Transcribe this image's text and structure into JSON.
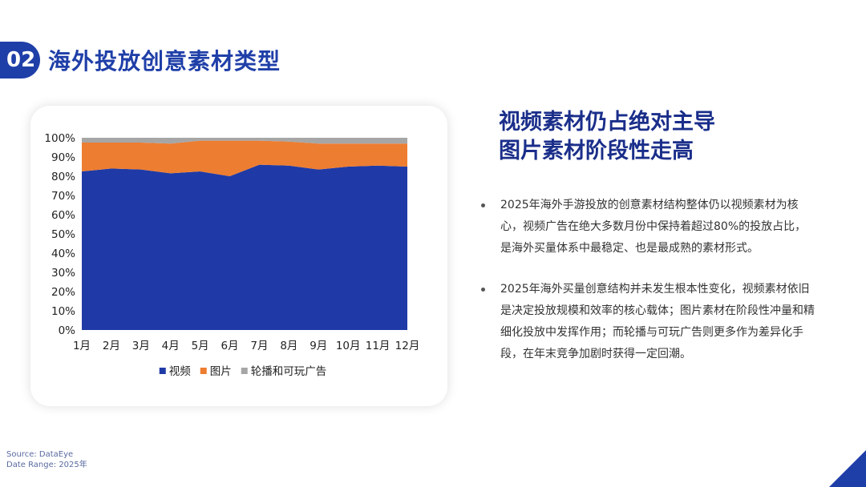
{
  "header": {
    "section_number": "02",
    "title": "海外投放创意素材类型"
  },
  "headline": {
    "line1": "视频素材仍占绝对主导",
    "line2": "图片素材阶段性走高"
  },
  "bullets": [
    "2025年海外手游投放的创意素材结构整体仍以视频素材为核心，视频广告在绝大多数月份中保持着超过80%的投放占比，是海外买量体系中最稳定、也是最成熟的素材形式。",
    "2025年海外买量创意结构并未发生根本性变化，视频素材依旧是决定投放规模和效率的核心载体；图片素材在阶段性冲量和精细化投放中发挥作用；而轮播与可玩广告则更多作为差异化手段，在年末竞争加剧时获得一定回潮。"
  ],
  "footer": {
    "source": "Source: DataEye",
    "date_range": "Date Range: 2025年"
  },
  "colors": {
    "video": "#1f3aa6",
    "image": "#ed7d31",
    "carousel": "#a6a6a6",
    "accent": "#1f3fa8"
  },
  "chart_data": {
    "type": "area",
    "stacked": true,
    "categories": [
      "1月",
      "2月",
      "3月",
      "4月",
      "5月",
      "6月",
      "7月",
      "8月",
      "9月",
      "10月",
      "11月",
      "12月"
    ],
    "series": [
      {
        "name": "视频",
        "values": [
          82.5,
          84.0,
          83.5,
          81.5,
          82.5,
          80.0,
          86.0,
          85.5,
          83.5,
          85.0,
          85.5,
          85.0
        ]
      },
      {
        "name": "图片",
        "values": [
          15.0,
          13.5,
          14.0,
          15.5,
          16.0,
          18.5,
          12.5,
          12.5,
          13.5,
          12.0,
          11.5,
          12.0
        ]
      },
      {
        "name": "轮播和可玩广告",
        "values": [
          2.5,
          2.5,
          2.5,
          3.0,
          1.5,
          1.5,
          1.5,
          2.0,
          3.0,
          3.0,
          3.0,
          3.0
        ]
      }
    ],
    "y_ticks": [
      "0%",
      "10%",
      "20%",
      "30%",
      "40%",
      "50%",
      "60%",
      "70%",
      "80%",
      "90%",
      "100%"
    ],
    "ylim": [
      0,
      100
    ],
    "grid": false,
    "legend_position": "bottom"
  }
}
